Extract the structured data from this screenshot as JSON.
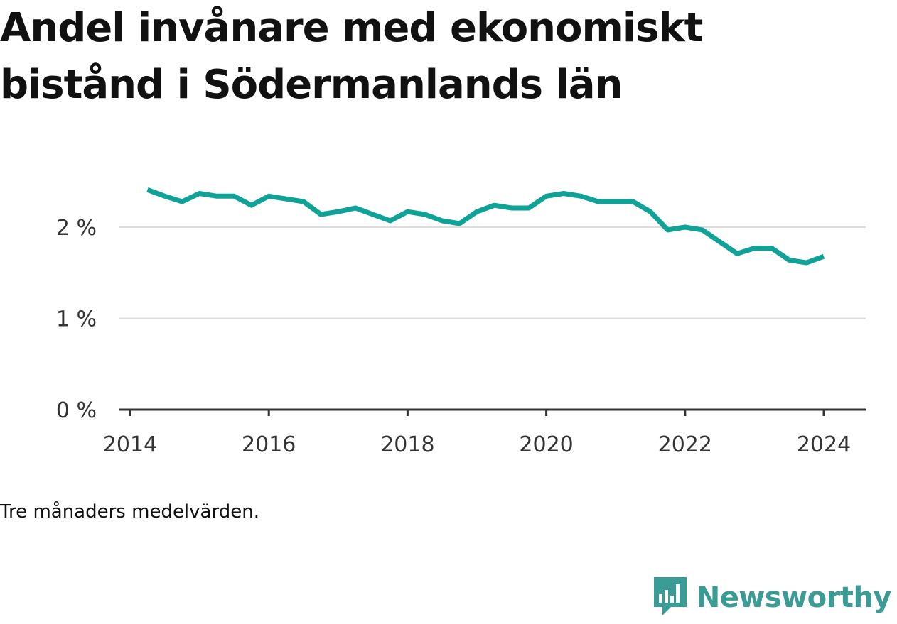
{
  "title": "Andel invånare med ekonomiskt bistånd i Södermanlands län",
  "note": "Tre månaders medelvärden.",
  "brand": {
    "name": "Newsworthy",
    "icon": "bar-chart-speech-bubble-icon",
    "color": "#3a9c95"
  },
  "colors": {
    "line": "#0fa398",
    "grid": "#dddddd",
    "axis": "#333333"
  },
  "chart_data": {
    "type": "line",
    "title": "Andel invånare med ekonomiskt bistånd i Södermanlands län",
    "xlabel": "",
    "ylabel": "",
    "x_tick_labels": [
      "2014",
      "2016",
      "2018",
      "2020",
      "2022",
      "2024"
    ],
    "y_tick_labels": [
      "0 %",
      "1 %",
      "2 %"
    ],
    "y_ticks": [
      0,
      1,
      2
    ],
    "ylim": [
      0,
      2.5
    ],
    "grid": "horizontal",
    "series": [
      {
        "name": "",
        "x": [
          "2014-04",
          "2014-07",
          "2014-10",
          "2015-01",
          "2015-04",
          "2015-07",
          "2015-10",
          "2016-01",
          "2016-04",
          "2016-07",
          "2016-10",
          "2017-01",
          "2017-04",
          "2017-07",
          "2017-10",
          "2018-01",
          "2018-04",
          "2018-07",
          "2018-10",
          "2019-01",
          "2019-04",
          "2019-07",
          "2019-10",
          "2020-01",
          "2020-04",
          "2020-07",
          "2020-10",
          "2021-01",
          "2021-04",
          "2021-07",
          "2021-10",
          "2022-01",
          "2022-04",
          "2022-07",
          "2022-10",
          "2023-01",
          "2023-04",
          "2023-07",
          "2023-10",
          "2024-01"
        ],
        "values": [
          2.41,
          2.34,
          2.28,
          2.37,
          2.34,
          2.34,
          2.24,
          2.34,
          2.31,
          2.28,
          2.14,
          2.17,
          2.21,
          2.14,
          2.07,
          2.17,
          2.14,
          2.07,
          2.04,
          2.17,
          2.24,
          2.21,
          2.21,
          2.34,
          2.37,
          2.34,
          2.28,
          2.28,
          2.28,
          2.17,
          1.97,
          2.0,
          1.97,
          1.84,
          1.71,
          1.77,
          1.77,
          1.64,
          1.61,
          1.68
        ]
      }
    ]
  }
}
